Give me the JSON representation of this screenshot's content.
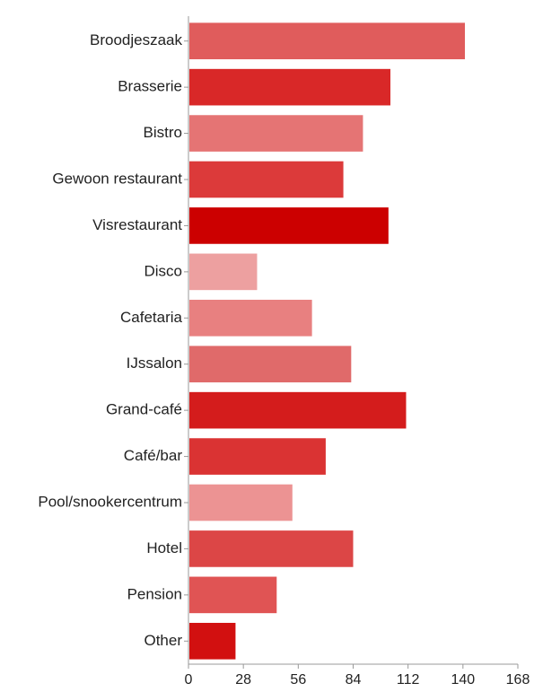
{
  "chart_data": {
    "type": "bar",
    "orientation": "horizontal",
    "title": "",
    "xlabel": "",
    "ylabel": "",
    "categories": [
      "Broodjeszaak",
      "Brasserie",
      "Bistro",
      "Gewoon restaurant",
      "Visrestaurant",
      "Disco",
      "Cafetaria",
      "IJssalon",
      "Grand-café",
      "Café/bar",
      "Pool/snookercentrum",
      "Hotel",
      "Pension",
      "Other"
    ],
    "values": [
      141,
      103,
      89,
      79,
      102,
      35,
      63,
      83,
      111,
      70,
      53,
      84,
      45,
      24
    ],
    "colors": [
      "#e05c5c",
      "#d92828",
      "#e57474",
      "#dc3a3a",
      "#cc0000",
      "#eda0a0",
      "#e88080",
      "#e06a6a",
      "#d41c1c",
      "#da3333",
      "#ec9393",
      "#dc4646",
      "#e05454",
      "#d21010"
    ],
    "xlim": [
      0,
      168
    ],
    "xticks": [
      0,
      28,
      56,
      84,
      112,
      140,
      168
    ],
    "grid": false,
    "legend": "none"
  }
}
